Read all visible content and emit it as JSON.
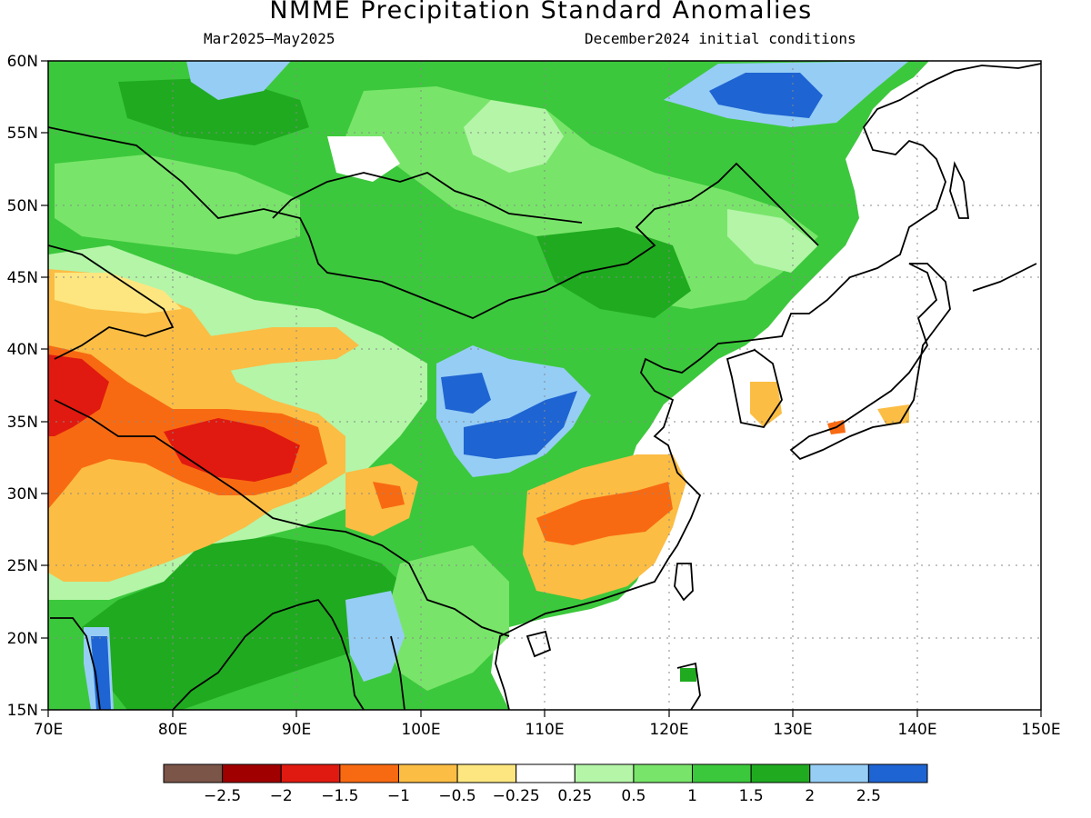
{
  "title": "NMME Precipitation Standard Anomalies",
  "subtitle_left": "Mar2025–May2025",
  "subtitle_right": "December2024 initial conditions",
  "map": {
    "lon_range": [
      70,
      150
    ],
    "lat_range": [
      15,
      60
    ],
    "lon_ticks": [
      "70E",
      "80E",
      "90E",
      "100E",
      "110E",
      "120E",
      "130E",
      "140E",
      "150E"
    ],
    "lat_ticks": [
      "60N",
      "55N",
      "50N",
      "45N",
      "40N",
      "35N",
      "30N",
      "25N",
      "20N",
      "15N"
    ],
    "grid": "dotted"
  },
  "colorbar": {
    "colors": [
      "#7a5548",
      "#a00000",
      "#e01a10",
      "#f86a12",
      "#fbbd44",
      "#fde680",
      "#ffffff",
      "#b4f5a8",
      "#78e56a",
      "#3cc83c",
      "#20aa20",
      "#96cdf5",
      "#1e64d2"
    ],
    "labels": [
      "−2.5",
      "−2",
      "−1.5",
      "−1",
      "−0.5",
      "−0.25",
      "0.25",
      "0.5",
      "1",
      "1.5",
      "2",
      "2.5"
    ]
  }
}
